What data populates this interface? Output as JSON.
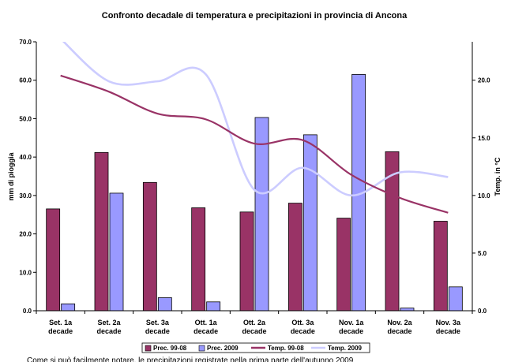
{
  "chart_data": {
    "type": "bar",
    "title": "Confronto decadale di temperatura e precipitazioni in provincia di Ancona",
    "categories": [
      [
        "Set. 1a",
        "decade"
      ],
      [
        "Set. 2a",
        "decade"
      ],
      [
        "Set. 3a",
        "decade"
      ],
      [
        "Ott. 1a",
        "decade"
      ],
      [
        "Ott. 2a",
        "decade"
      ],
      [
        "Ott. 3a",
        "decade"
      ],
      [
        "Nov. 1a",
        "decade"
      ],
      [
        "Nov. 2a",
        "decade"
      ],
      [
        "Nov. 3a",
        "decade"
      ]
    ],
    "ylabel_left": "mm di pioggia",
    "ylabel_right": "Temp. in °C",
    "ylim_left": [
      0,
      70
    ],
    "ylim_right": [
      0,
      23.33
    ],
    "yticks_left": [
      "0.0",
      "10.0",
      "20.0",
      "30.0",
      "40.0",
      "50.0",
      "60.0",
      "70.0"
    ],
    "yticks_right": [
      "0.0",
      "5.0",
      "10.0",
      "15.0",
      "20.0"
    ],
    "bar_series": [
      {
        "name": "Prec. 99-08",
        "color": "#993366",
        "values": [
          26.5,
          41.2,
          33.4,
          26.8,
          25.7,
          28.0,
          24.1,
          41.4,
          23.3
        ]
      },
      {
        "name": "Prec. 2009",
        "color": "#9999ff",
        "values": [
          1.8,
          30.6,
          3.4,
          2.3,
          50.3,
          45.8,
          61.5,
          0.7,
          6.2
        ]
      }
    ],
    "line_series": [
      {
        "name": "Temp. 99-08",
        "color": "#993366",
        "values": [
          20.4,
          19.0,
          17.1,
          16.6,
          14.5,
          14.8,
          11.8,
          9.8,
          8.5
        ]
      },
      {
        "name": "Temp. 2009",
        "color": "#ccccff",
        "values": [
          23.6,
          19.9,
          19.9,
          20.5,
          10.5,
          12.4,
          10.0,
          12.0,
          11.6
        ]
      }
    ],
    "legend_position": "bottom",
    "grid": false
  },
  "footer_text": "Come si può facilmente notare, le precipitazioni registrate nella prima parte dell'autunno 2009"
}
